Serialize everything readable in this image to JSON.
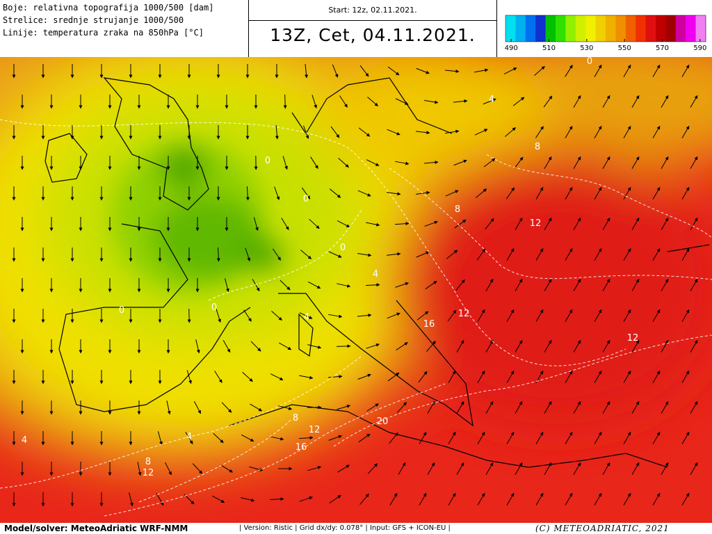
{
  "header": {
    "legend_lines": [
      "Boje: relativna topografija 1000/500 [dam]",
      "Strelice: srednje strujanje 1000/500",
      "Linije: temperatura zraka na 850hPa [°C]"
    ],
    "start": "Start: 12z, 02.11.2021.",
    "valid": "13Z, Cet, 04.11.2021."
  },
  "colorbar": {
    "range": [
      487,
      593
    ],
    "ticks": [
      490,
      510,
      530,
      550,
      570,
      590
    ],
    "colors": [
      "#00e0f0",
      "#00b0f0",
      "#0070f0",
      "#1030d0",
      "#00c000",
      "#30e000",
      "#90f000",
      "#d0f000",
      "#f0f000",
      "#f0d000",
      "#f0b000",
      "#f09000",
      "#f06000",
      "#f03000",
      "#e01010",
      "#c00000",
      "#a00000",
      "#d000a0",
      "#f000f0",
      "#f080f0"
    ]
  },
  "map": {
    "contour_labels": [
      "0",
      "4",
      "8",
      "0",
      "0",
      "8",
      "12",
      "0",
      "4",
      "0",
      "0",
      "4",
      "16",
      "12",
      "12",
      "8",
      "20",
      "12",
      "4",
      "4",
      "16",
      "8",
      "12"
    ]
  },
  "footer": {
    "model": "Model/solver: MeteoAdriatic WRF-NMM",
    "info": "| Version: Ristic | Grid dx/dy: 0.078° | Input: GFS + ICON-EU |",
    "copyright": "(C) METEOADRIATIC, 2021"
  }
}
